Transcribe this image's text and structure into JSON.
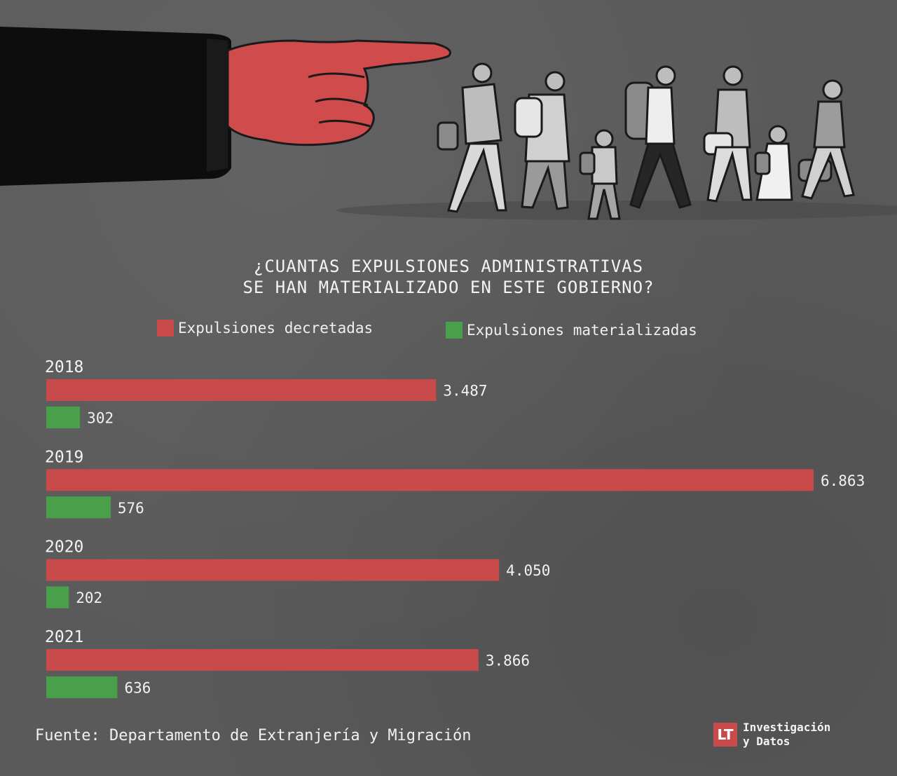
{
  "colors": {
    "background": "#5a5a5a",
    "decreed": "#c94a4a",
    "materialized": "#4aa04a",
    "text": "#f2f2f2"
  },
  "title_line1": "¿CUANTAS EXPULSIONES ADMINISTRATIVAS",
  "title_line2": "SE HAN MATERIALIZADO EN ESTE GOBIERNO?",
  "legend": {
    "decreed": "Expulsiones decretadas",
    "materialized": "Expulsiones materializadas"
  },
  "chart_data": {
    "type": "bar",
    "orientation": "horizontal",
    "categories": [
      "2018",
      "2019",
      "2020",
      "2021"
    ],
    "series": [
      {
        "name": "Expulsiones decretadas",
        "values": [
          3487,
          6863,
          4050,
          3866
        ],
        "labels": [
          "3.487",
          "6.863",
          "4.050",
          "3.866"
        ]
      },
      {
        "name": "Expulsiones materializadas",
        "values": [
          302,
          576,
          202,
          636
        ],
        "labels": [
          "302",
          "576",
          "202",
          "636"
        ]
      }
    ],
    "xlim": [
      0,
      7000
    ],
    "grid": false,
    "legend_position": "top"
  },
  "source": "Fuente: Departamento de Extranjería y Migración",
  "brand": {
    "logo_letters": "LT",
    "line1": "Investigación",
    "line2": "y Datos"
  }
}
